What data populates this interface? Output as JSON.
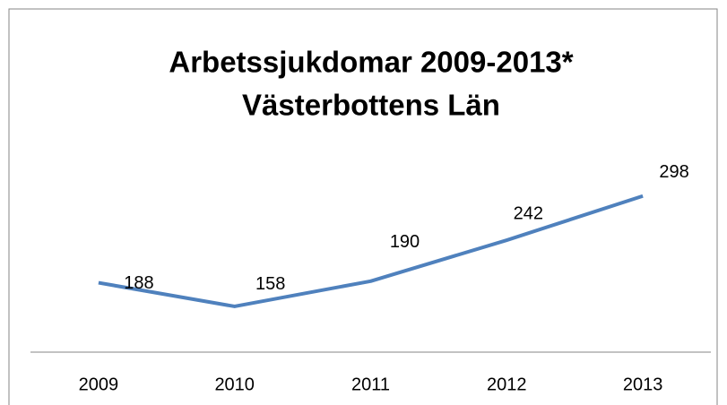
{
  "chart_data": {
    "type": "line",
    "title": [
      "Arbetssjukdomar 2009-2013*",
      "Västerbottens Län"
    ],
    "categories": [
      "2009",
      "2010",
      "2011",
      "2012",
      "2013"
    ],
    "values": [
      188,
      158,
      190,
      242,
      298
    ],
    "color": "#4f81bd",
    "ylim": [
      100,
      350
    ]
  }
}
